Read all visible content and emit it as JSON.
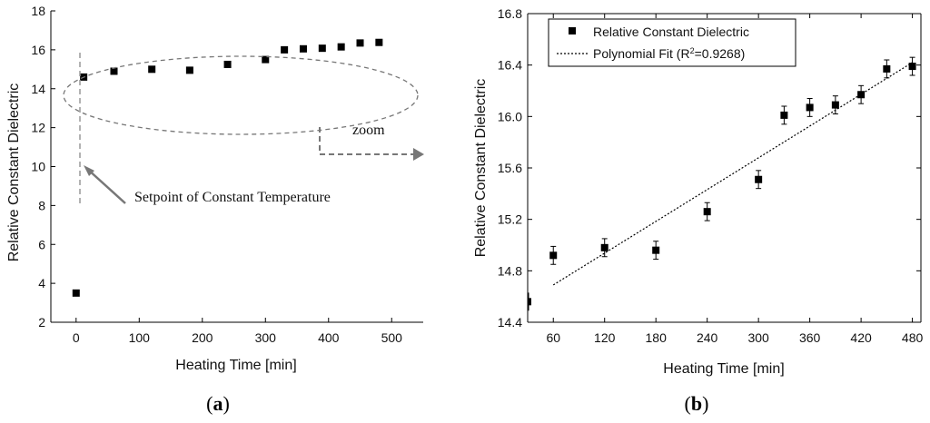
{
  "chart_data": [
    {
      "panel": "(a)",
      "type": "scatter",
      "title": "",
      "xlabel": "Heating Time [min]",
      "ylabel": "Relative Constant Dielectric",
      "xlim": [
        -40,
        550
      ],
      "ylim": [
        2,
        18
      ],
      "xticks": [
        0,
        100,
        200,
        300,
        400,
        500
      ],
      "yticks": [
        2,
        4,
        6,
        8,
        10,
        12,
        14,
        16,
        18
      ],
      "series": [
        {
          "name": "Relative Constant Dielectric",
          "x": [
            0,
            12,
            60,
            120,
            180,
            240,
            300,
            330,
            360,
            390,
            420,
            450,
            480
          ],
          "y": [
            3.5,
            14.6,
            14.9,
            15.0,
            14.95,
            15.25,
            15.5,
            16.0,
            16.05,
            16.08,
            16.15,
            16.35,
            16.38
          ]
        }
      ],
      "annotations": {
        "setpoint_label": "Setpoint of Constant Temperature",
        "zoom_label": "zoom"
      }
    },
    {
      "panel": "(b)",
      "type": "scatter",
      "title": "",
      "xlabel": "Heating Time [min]",
      "ylabel": "Relative Constant Dielectric",
      "xlim": [
        30,
        490
      ],
      "ylim": [
        14.4,
        16.8
      ],
      "xticks": [
        60,
        120,
        180,
        240,
        300,
        360,
        420,
        480
      ],
      "yticks": [
        14.4,
        14.8,
        15.2,
        15.6,
        16.0,
        16.4,
        16.8
      ],
      "series": [
        {
          "name": "Relative Constant Dielectric",
          "x": [
            30,
            60,
            120,
            180,
            240,
            300,
            330,
            360,
            390,
            420,
            450,
            480
          ],
          "y": [
            14.56,
            14.92,
            14.98,
            14.96,
            15.26,
            15.51,
            16.01,
            16.07,
            16.09,
            16.17,
            16.37,
            16.39
          ],
          "error": [
            0.07,
            0.07,
            0.07,
            0.07,
            0.07,
            0.07,
            0.07,
            0.07,
            0.07,
            0.07,
            0.07,
            0.07
          ]
        },
        {
          "name": "Polynomial Fit (R2=0.9268)",
          "type": "line",
          "x": [
            60,
            480
          ],
          "y": [
            14.69,
            16.42
          ]
        }
      ],
      "legend": {
        "position": "top-left",
        "entries": [
          "Relative Constant Dielectric",
          "Polynomial Fit (R",
          "2",
          "=0.9268)"
        ]
      }
    }
  ]
}
